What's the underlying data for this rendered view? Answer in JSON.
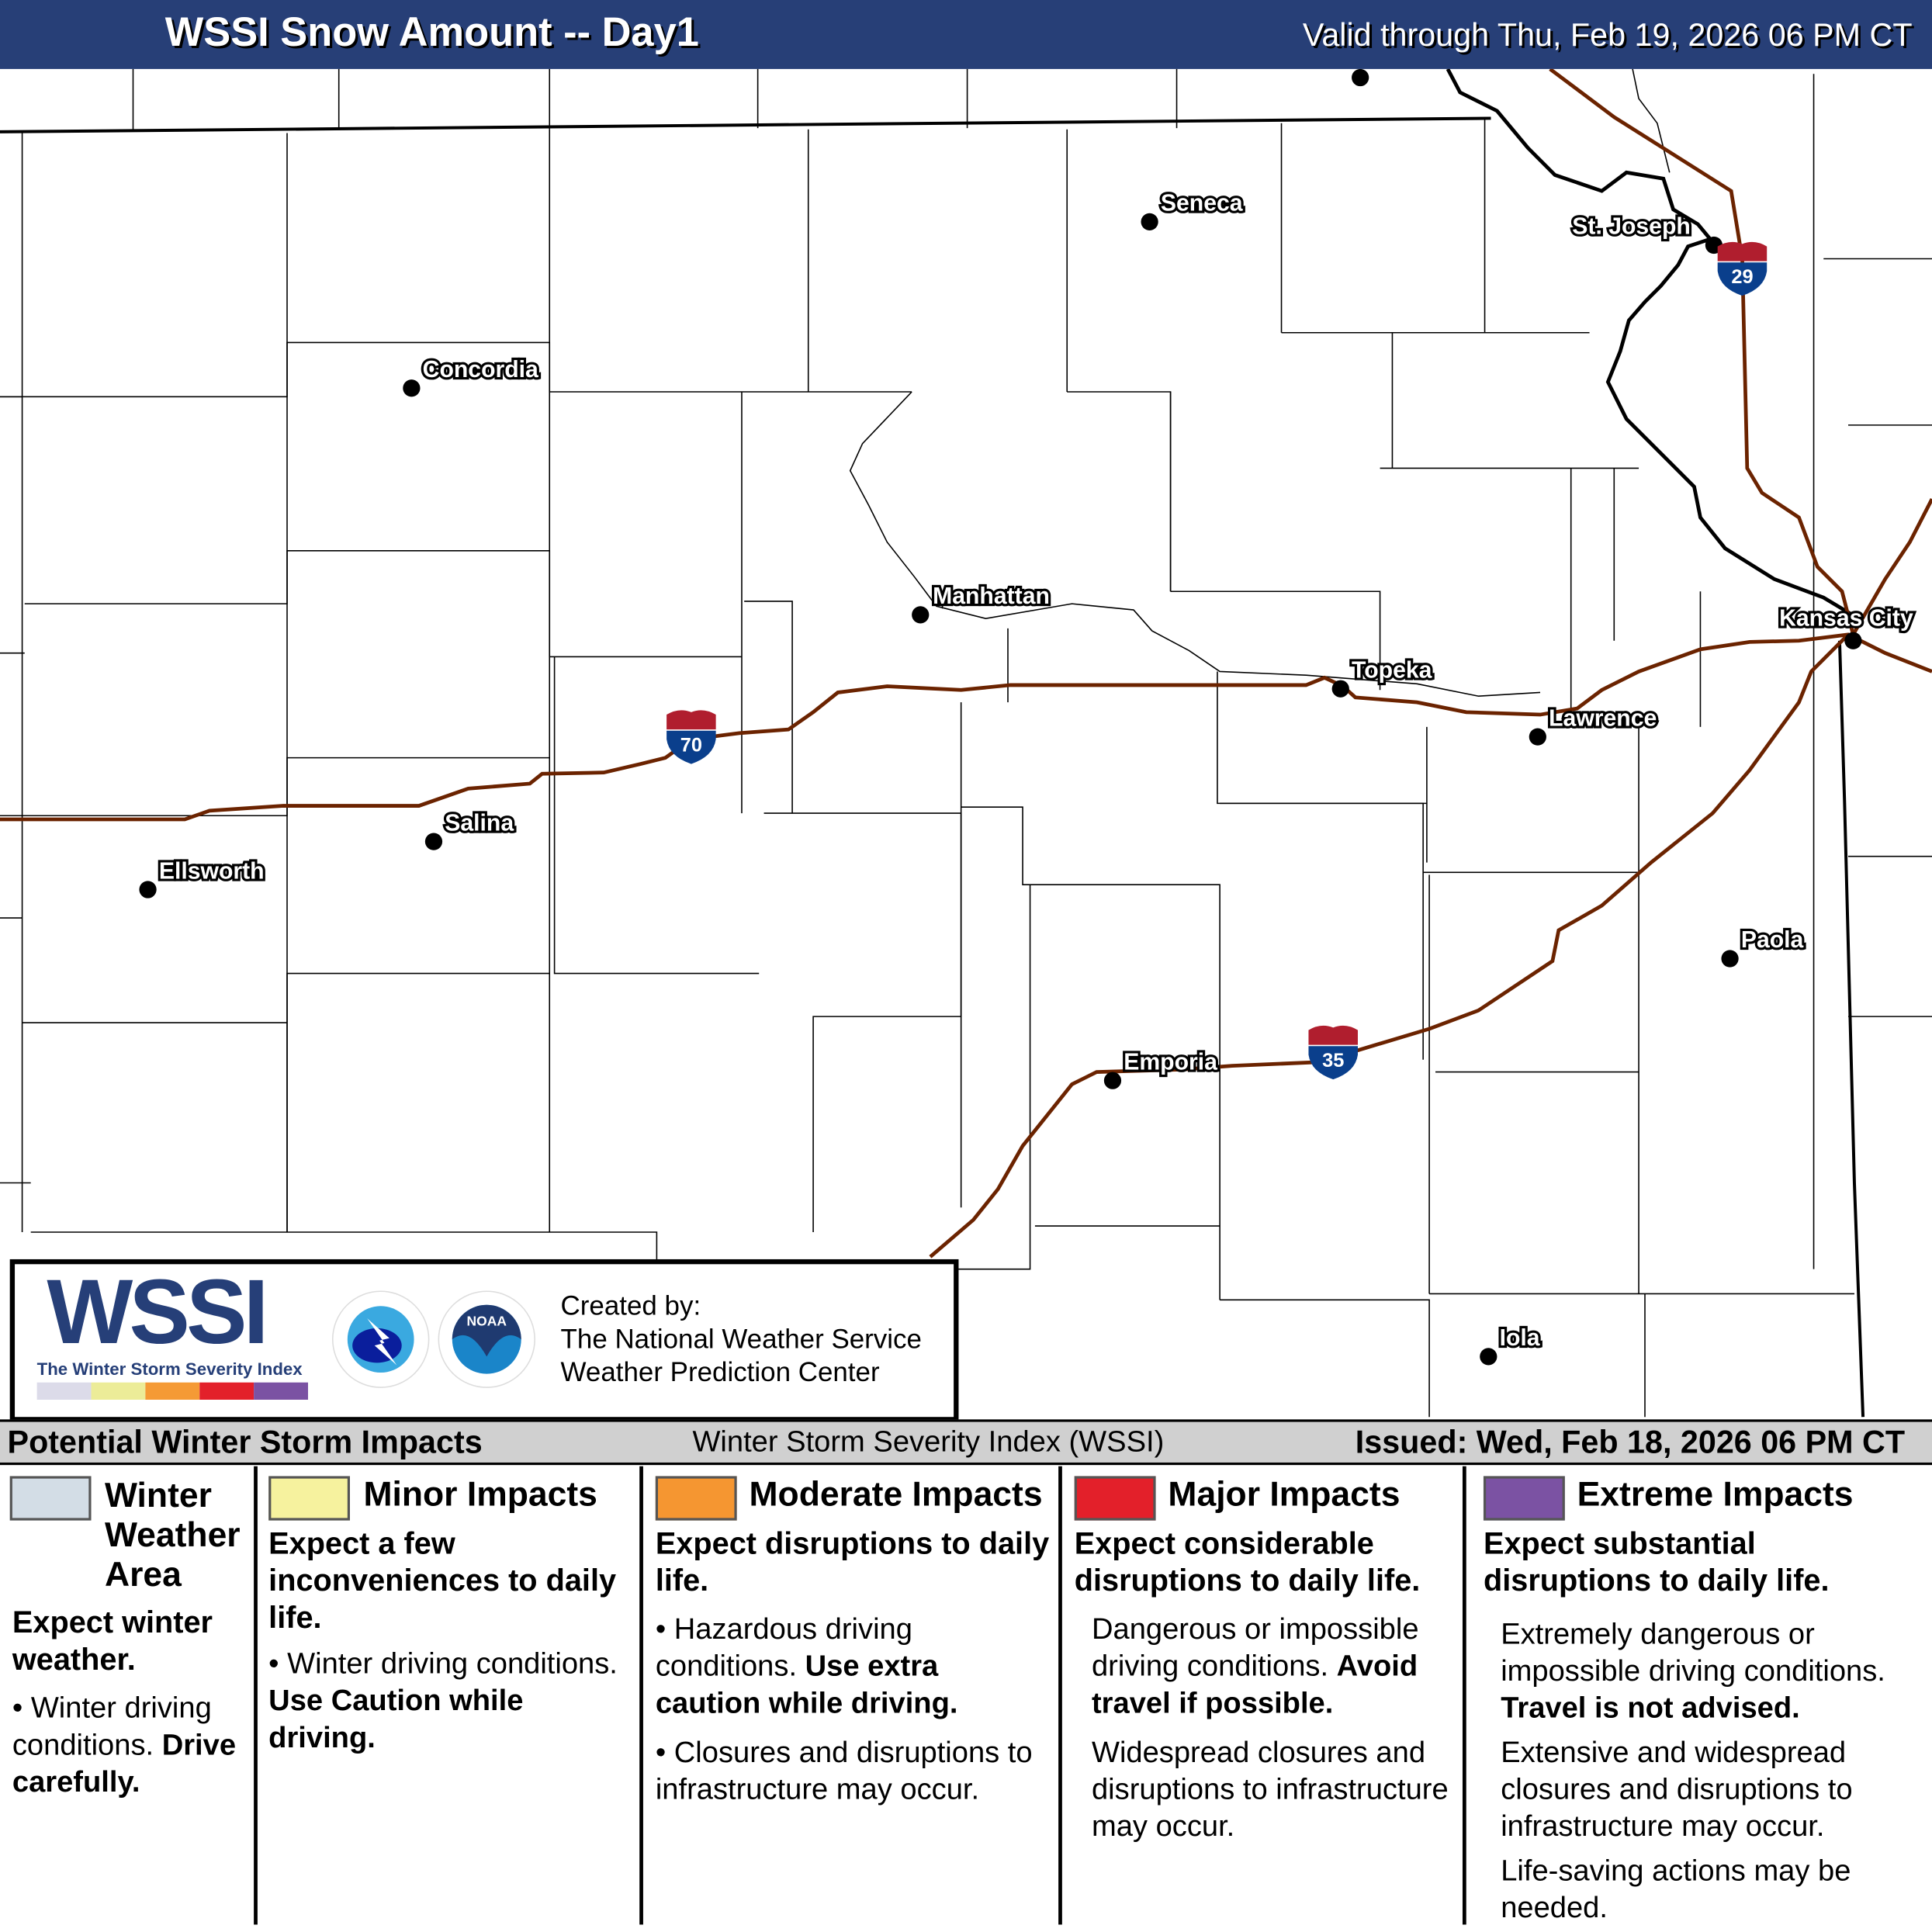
{
  "header": {
    "title": "WSSI Snow Amount -- Day1",
    "valid": "Valid through Thu, Feb 19, 2026 06 PM CT"
  },
  "map": {
    "cities": [
      "Seneca",
      "St. Joseph",
      "Concordia",
      "Manhattan",
      "Topeka",
      "Kansas City",
      "Lawrence",
      "Salina",
      "Ellsworth",
      "Paola",
      "Emporia",
      "Iola"
    ],
    "interstates": [
      "70",
      "29",
      "35"
    ],
    "colors": {
      "interstate": "#6b2300",
      "shield_top": "#b01e2e",
      "shield_bottom": "#0a3f8c"
    }
  },
  "logo": {
    "wordmark": "WSSI",
    "tagline": "The Winter Storm Severity Index",
    "nws_text": "NATIONAL WEATHER SERVICE",
    "noaa_text": "NOAA",
    "created_by": "Created by:",
    "org1": "The National Weather Service",
    "org2": "Weather Prediction Center"
  },
  "legend": {
    "title": "Potential Winter Storm Impacts",
    "index": "Winter Storm Severity Index (WSSI)",
    "issued": "Issued: Wed, Feb 18, 2026 06 PM CT",
    "levels": [
      {
        "name": "Winter Weather Area",
        "color": "#d3dde6",
        "summary": "Expect winter weather.",
        "bullet": "Winter driving conditions.",
        "bold": "Drive carefully."
      },
      {
        "name": "Minor Impacts",
        "color": "#f6f29e",
        "summary": "Expect a few inconveniences to daily life.",
        "bullet": "Winter driving conditions.",
        "bold": "Use Caution while driving."
      },
      {
        "name": "Moderate Impacts",
        "color": "#f59631",
        "summary": "Expect disruptions to daily life.",
        "bullet": "Hazardous driving conditions.",
        "bold": "Use extra caution while driving.",
        "bullet2": "Closures and disruptions to infrastructure may occur."
      },
      {
        "name": "Major Impacts",
        "color": "#e3202a",
        "summary": "Expect considerable disruptions to daily life.",
        "bullet": "Dangerous or impossible driving conditions.",
        "bold": "Avoid travel if possible.",
        "bullet2": "Widespread closures and disruptions to infrastructure may occur."
      },
      {
        "name": "Extreme Impacts",
        "color": "#7b52a3",
        "summary": "Expect substantial disruptions to daily life.",
        "bullet": "Extremely dangerous or impossible driving conditions.",
        "bold": "Travel is not advised.",
        "bullet2": "Extensive and widespread closures and disruptions to infrastructure may occur.",
        "bullet3": "Life-saving actions may be needed."
      }
    ]
  }
}
